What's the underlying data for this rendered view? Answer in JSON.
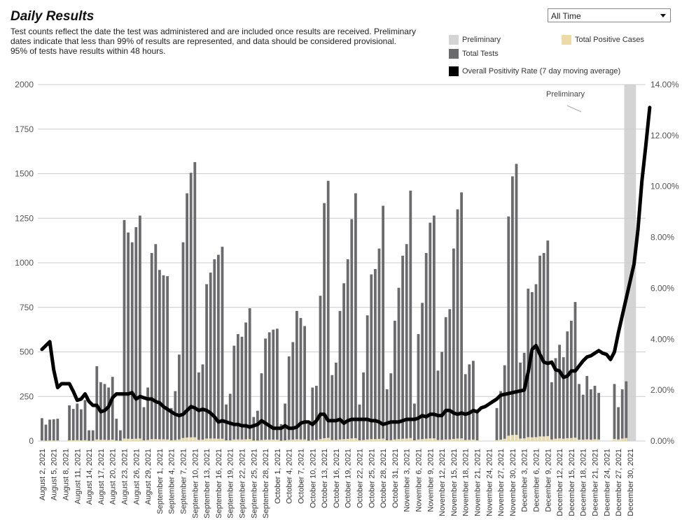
{
  "header": {
    "title": "Daily Results",
    "subtitle_lines": [
      "Test counts reflect the date the test was administered and are included once results are received. Preliminary",
      "dates indicate that less than 99% of results are represented, and data should be considered provisional.",
      "95% of tests have results within 48 hours."
    ]
  },
  "filter": {
    "selected": "All Time"
  },
  "legend": {
    "preliminary": "Preliminary",
    "total_tests": "Total Tests",
    "total_positive": "Total Positive Cases",
    "positivity": "Overall Positivity Rate (7 day moving average)"
  },
  "colors": {
    "preliminary": "#d4d4d4",
    "total_tests": "#6b6b6d",
    "total_positive": "#ecdba6",
    "positivity": "#000000",
    "grid": "#cccccc"
  },
  "chart_data": {
    "type": "bar",
    "annotation": "Preliminary",
    "x_labels": [
      "August 2, 2021",
      "August 5, 2021",
      "August 8, 2021",
      "August 11, 2021",
      "August 14, 2021",
      "August 17, 2021",
      "August 20, 2021",
      "August 23, 2021",
      "August 26, 2021",
      "August 29, 2021",
      "September 1, 2021",
      "September 4, 2021",
      "September 7, 2021",
      "September 10, 2021",
      "September 13, 2021",
      "September 16, 2021",
      "September 19, 2021",
      "September 22, 2021",
      "September 25, 2021",
      "September 28, 2021",
      "October 1, 2021",
      "October 4, 2021",
      "October 7, 2021",
      "October 10, 2021",
      "October 13, 2021",
      "October 16, 2021",
      "October 19, 2021",
      "October 22, 2021",
      "October 25, 2021",
      "October 28, 2021",
      "October 31, 2021",
      "November 3, 2021",
      "November 6, 2021",
      "November 9, 2021",
      "November 12, 2021",
      "November 15, 2021",
      "November 18, 2021",
      "November 21, 2021",
      "November 24, 2021",
      "November 27, 2021",
      "November 30, 2021",
      "December 3, 2021",
      "December 6, 2021",
      "December 9, 2021",
      "December 12, 2021",
      "December 15, 2021",
      "December 18, 2021",
      "December 21, 2021",
      "December 24, 2021",
      "December 27, 2021",
      "December 30, 2021"
    ],
    "y_left": {
      "ticks": [
        "0",
        "250",
        "500",
        "750",
        "1000",
        "1250",
        "1500",
        "1750",
        "2000"
      ],
      "range": [
        0,
        2000
      ]
    },
    "y_right": {
      "ticks": [
        "0.00%",
        "2.00%",
        "4.00%",
        "6.00%",
        "8.00%",
        "10.00%",
        "12.00%",
        "14.00%"
      ],
      "range": [
        0,
        14
      ]
    },
    "preliminary_range": [
      "December 29, 2021",
      "January 1, 2022"
    ],
    "series": [
      {
        "key": "total_tests",
        "start": "August 2, 2021",
        "values": [
          128,
          92,
          120,
          122,
          125,
          0,
          0,
          200,
          180,
          210,
          178,
          230,
          60,
          60,
          420,
          330,
          320,
          300,
          360,
          125,
          60,
          1240,
          1170,
          1115,
          1200,
          1265,
          190,
          300,
          1055,
          1105,
          960,
          930,
          925,
          185,
          280,
          485,
          1115,
          1390,
          1505,
          1565,
          385,
          430,
          880,
          945,
          1020,
          1045,
          1090,
          205,
          265,
          535,
          600,
          585,
          665,
          745,
          135,
          170,
          380,
          575,
          610,
          625,
          630,
          95,
          210,
          475,
          555,
          730,
          690,
          645,
          95,
          300,
          310,
          815,
          1335,
          1460,
          370,
          440,
          730,
          885,
          1020,
          1245,
          1390,
          205,
          385,
          705,
          935,
          965,
          1080,
          1320,
          290,
          380,
          675,
          860,
          1040,
          1105,
          1405,
          210,
          600,
          775,
          1055,
          1225,
          1265,
          395,
          500,
          695,
          740,
          1080,
          1300,
          1395,
          375,
          430,
          450,
          175,
          0,
          0,
          0,
          0,
          185,
          280,
          425,
          1260,
          1485,
          1555,
          440,
          495,
          855,
          835,
          880,
          1040,
          1055,
          1125,
          330,
          465,
          540,
          470,
          615,
          675,
          780,
          320,
          260,
          365,
          290,
          310,
          270,
          0,
          0,
          0,
          320,
          190,
          290,
          335
        ]
      },
      {
        "key": "total_positive",
        "start": "August 2, 2021",
        "values": [
          3,
          2,
          3,
          3,
          3,
          0,
          0,
          4,
          4,
          5,
          4,
          5,
          2,
          2,
          9,
          7,
          7,
          6,
          8,
          3,
          2,
          14,
          13,
          12,
          13,
          14,
          4,
          6,
          11,
          11,
          10,
          10,
          9,
          4,
          6,
          9,
          17,
          20,
          21,
          21,
          7,
          8,
          14,
          14,
          14,
          13,
          13,
          4,
          4,
          9,
          9,
          9,
          10,
          11,
          3,
          3,
          6,
          8,
          8,
          8,
          8,
          2,
          4,
          7,
          8,
          10,
          9,
          9,
          2,
          6,
          6,
          11,
          16,
          18,
          6,
          6,
          9,
          11,
          12,
          15,
          16,
          4,
          6,
          9,
          11,
          11,
          12,
          14,
          4,
          5,
          9,
          11,
          13,
          14,
          17,
          4,
          9,
          11,
          13,
          15,
          15,
          6,
          7,
          9,
          9,
          12,
          14,
          15,
          6,
          7,
          8,
          4,
          0,
          0,
          0,
          0,
          5,
          8,
          13,
          30,
          34,
          35,
          14,
          15,
          22,
          21,
          22,
          26,
          26,
          28,
          9,
          13,
          15,
          13,
          16,
          17,
          19,
          8,
          8,
          10,
          8,
          10,
          9,
          0,
          0,
          0,
          12,
          9,
          14,
          17
        ]
      },
      {
        "key": "positivity",
        "start": "August 2, 2021",
        "points": [
          [
            0,
            3.6
          ],
          [
            1,
            3.75
          ],
          [
            2,
            3.9
          ],
          [
            3,
            2.8
          ],
          [
            4,
            2.1
          ],
          [
            5,
            2.25
          ],
          [
            6,
            2.25
          ],
          [
            7,
            2.25
          ],
          [
            8,
            1.95
          ],
          [
            9,
            1.6
          ],
          [
            10,
            1.65
          ],
          [
            11,
            1.85
          ],
          [
            12,
            1.55
          ],
          [
            13,
            1.4
          ],
          [
            14,
            1.4
          ],
          [
            15,
            1.15
          ],
          [
            16,
            1.2
          ],
          [
            17,
            1.35
          ],
          [
            18,
            1.7
          ],
          [
            19,
            1.85
          ],
          [
            20,
            1.85
          ],
          [
            21,
            1.85
          ],
          [
            22,
            1.85
          ],
          [
            23,
            1.9
          ],
          [
            24,
            1.65
          ],
          [
            25,
            1.75
          ],
          [
            26,
            1.7
          ],
          [
            27,
            1.65
          ],
          [
            28,
            1.65
          ],
          [
            29,
            1.55
          ],
          [
            30,
            1.5
          ],
          [
            31,
            1.35
          ],
          [
            32,
            1.25
          ],
          [
            33,
            1.15
          ],
          [
            34,
            1.05
          ],
          [
            35,
            1.0
          ],
          [
            36,
            1.05
          ],
          [
            37,
            1.2
          ],
          [
            38,
            1.35
          ],
          [
            39,
            1.3
          ],
          [
            40,
            1.2
          ],
          [
            41,
            1.25
          ],
          [
            42,
            1.2
          ],
          [
            43,
            1.1
          ],
          [
            44,
            0.95
          ],
          [
            45,
            0.75
          ],
          [
            46,
            0.8
          ],
          [
            47,
            0.75
          ],
          [
            48,
            0.7
          ],
          [
            49,
            0.65
          ],
          [
            50,
            0.65
          ],
          [
            51,
            0.6
          ],
          [
            52,
            0.6
          ],
          [
            53,
            0.55
          ],
          [
            54,
            0.6
          ],
          [
            55,
            0.65
          ],
          [
            56,
            0.8
          ],
          [
            57,
            0.7
          ],
          [
            58,
            0.6
          ],
          [
            59,
            0.5
          ],
          [
            60,
            0.5
          ],
          [
            61,
            0.5
          ],
          [
            62,
            0.6
          ],
          [
            63,
            0.5
          ],
          [
            64,
            0.5
          ],
          [
            65,
            0.55
          ],
          [
            66,
            0.7
          ],
          [
            67,
            0.75
          ],
          [
            68,
            0.75
          ],
          [
            69,
            0.65
          ],
          [
            70,
            0.8
          ],
          [
            71,
            1.05
          ],
          [
            72,
            1.05
          ],
          [
            73,
            0.8
          ],
          [
            74,
            0.8
          ],
          [
            75,
            0.8
          ],
          [
            76,
            0.85
          ],
          [
            77,
            0.7
          ],
          [
            78,
            0.8
          ],
          [
            79,
            0.85
          ],
          [
            80,
            0.85
          ],
          [
            81,
            0.85
          ],
          [
            82,
            0.85
          ],
          [
            83,
            0.85
          ],
          [
            84,
            0.8
          ],
          [
            85,
            0.8
          ],
          [
            86,
            0.75
          ],
          [
            87,
            0.65
          ],
          [
            88,
            0.7
          ],
          [
            89,
            0.75
          ],
          [
            90,
            0.75
          ],
          [
            91,
            0.75
          ],
          [
            92,
            0.8
          ],
          [
            93,
            0.85
          ],
          [
            94,
            0.85
          ],
          [
            95,
            0.85
          ],
          [
            96,
            0.9
          ],
          [
            97,
            1.0
          ],
          [
            98,
            0.95
          ],
          [
            99,
            1.05
          ],
          [
            100,
            1.05
          ],
          [
            101,
            1.0
          ],
          [
            102,
            1.0
          ],
          [
            103,
            1.2
          ],
          [
            104,
            1.2
          ],
          [
            105,
            1.1
          ],
          [
            106,
            1.05
          ],
          [
            107,
            1.1
          ],
          [
            108,
            1.05
          ],
          [
            109,
            1.1
          ],
          [
            110,
            1.2
          ],
          [
            111,
            1.15
          ],
          [
            112,
            1.3
          ],
          [
            113,
            1.35
          ],
          [
            114,
            1.45
          ],
          [
            115,
            1.55
          ],
          [
            116,
            1.65
          ],
          [
            117,
            1.8
          ],
          [
            123,
            2.0
          ],
          [
            124,
            2.7
          ],
          [
            125,
            3.6
          ],
          [
            126,
            3.75
          ],
          [
            127,
            3.4
          ],
          [
            128,
            3.1
          ],
          [
            129,
            3.05
          ],
          [
            130,
            3.1
          ],
          [
            131,
            2.8
          ],
          [
            132,
            2.75
          ],
          [
            133,
            2.5
          ],
          [
            134,
            2.55
          ],
          [
            135,
            2.75
          ],
          [
            136,
            2.75
          ],
          [
            137,
            2.95
          ],
          [
            138,
            3.15
          ],
          [
            139,
            3.3
          ],
          [
            140,
            3.35
          ],
          [
            141,
            3.45
          ],
          [
            142,
            3.55
          ],
          [
            143,
            3.45
          ],
          [
            144,
            3.4
          ],
          [
            145,
            3.2
          ],
          [
            146,
            3.5
          ],
          [
            147,
            4.25
          ],
          [
            151,
            6.95
          ],
          [
            152,
            8.3
          ],
          [
            153,
            10.2
          ],
          [
            154,
            11.6
          ],
          [
            155,
            13.1
          ]
        ]
      }
    ]
  }
}
